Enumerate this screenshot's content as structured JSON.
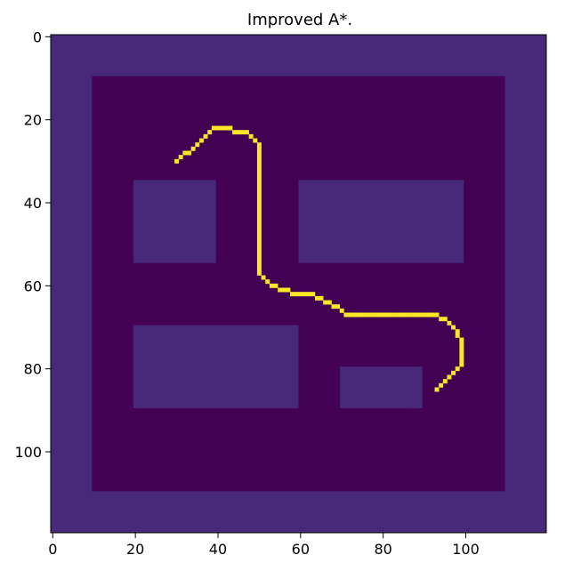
{
  "chart_data": {
    "type": "heatmap",
    "title": "Improved A*.",
    "xlabel": "",
    "ylabel": "",
    "grid": false,
    "xlim": [
      -0.5,
      119.5
    ],
    "ylim": [
      119.5,
      -0.5
    ],
    "x_ticks": [
      0,
      20,
      40,
      60,
      80,
      100
    ],
    "y_ticks": [
      0,
      20,
      40,
      60,
      80,
      100
    ],
    "colors": {
      "free": "#440154",
      "obstacle": "#482878",
      "path": "#fde725",
      "axes": "#000000"
    },
    "grid_size": [
      120,
      120
    ],
    "boundary_obstacle": {
      "outer": [
        0,
        120
      ],
      "inner": [
        10,
        110
      ]
    },
    "obstacles": [
      {
        "x0": 20,
        "x1": 40,
        "y0": 35,
        "y1": 55
      },
      {
        "x0": 60,
        "x1": 100,
        "y0": 35,
        "y1": 55
      },
      {
        "x0": 20,
        "x1": 60,
        "y0": 70,
        "y1": 90
      },
      {
        "x0": 70,
        "x1": 90,
        "y0": 80,
        "y1": 90
      }
    ],
    "path": [
      [
        30,
        30
      ],
      [
        31,
        29
      ],
      [
        32,
        28
      ],
      [
        33,
        28
      ],
      [
        34,
        27
      ],
      [
        35,
        26
      ],
      [
        36,
        25
      ],
      [
        37,
        24
      ],
      [
        38,
        23
      ],
      [
        39,
        22
      ],
      [
        40,
        22
      ],
      [
        41,
        22
      ],
      [
        42,
        22
      ],
      [
        43,
        22
      ],
      [
        44,
        23
      ],
      [
        45,
        23
      ],
      [
        46,
        23
      ],
      [
        47,
        23
      ],
      [
        48,
        24
      ],
      [
        49,
        25
      ],
      [
        50,
        26
      ],
      [
        50,
        27
      ],
      [
        50,
        28
      ],
      [
        50,
        29
      ],
      [
        50,
        30
      ],
      [
        50,
        31
      ],
      [
        50,
        32
      ],
      [
        50,
        33
      ],
      [
        50,
        34
      ],
      [
        50,
        35
      ],
      [
        50,
        36
      ],
      [
        50,
        37
      ],
      [
        50,
        38
      ],
      [
        50,
        39
      ],
      [
        50,
        40
      ],
      [
        50,
        41
      ],
      [
        50,
        42
      ],
      [
        50,
        43
      ],
      [
        50,
        44
      ],
      [
        50,
        45
      ],
      [
        50,
        46
      ],
      [
        50,
        47
      ],
      [
        50,
        48
      ],
      [
        50,
        49
      ],
      [
        50,
        50
      ],
      [
        50,
        51
      ],
      [
        50,
        52
      ],
      [
        50,
        53
      ],
      [
        50,
        54
      ],
      [
        50,
        55
      ],
      [
        50,
        56
      ],
      [
        50,
        57
      ],
      [
        51,
        58
      ],
      [
        52,
        59
      ],
      [
        53,
        60
      ],
      [
        54,
        60
      ],
      [
        55,
        61
      ],
      [
        56,
        61
      ],
      [
        57,
        61
      ],
      [
        58,
        62
      ],
      [
        59,
        62
      ],
      [
        60,
        62
      ],
      [
        61,
        62
      ],
      [
        62,
        62
      ],
      [
        63,
        62
      ],
      [
        64,
        63
      ],
      [
        65,
        63
      ],
      [
        66,
        64
      ],
      [
        67,
        64
      ],
      [
        68,
        65
      ],
      [
        69,
        65
      ],
      [
        70,
        66
      ],
      [
        71,
        67
      ],
      [
        72,
        67
      ],
      [
        73,
        67
      ],
      [
        74,
        67
      ],
      [
        75,
        67
      ],
      [
        76,
        67
      ],
      [
        77,
        67
      ],
      [
        78,
        67
      ],
      [
        79,
        67
      ],
      [
        80,
        67
      ],
      [
        81,
        67
      ],
      [
        82,
        67
      ],
      [
        83,
        67
      ],
      [
        84,
        67
      ],
      [
        85,
        67
      ],
      [
        86,
        67
      ],
      [
        87,
        67
      ],
      [
        88,
        67
      ],
      [
        89,
        67
      ],
      [
        90,
        67
      ],
      [
        91,
        67
      ],
      [
        92,
        67
      ],
      [
        93,
        67
      ],
      [
        94,
        68
      ],
      [
        95,
        68
      ],
      [
        96,
        69
      ],
      [
        97,
        70
      ],
      [
        98,
        71
      ],
      [
        98,
        72
      ],
      [
        99,
        73
      ],
      [
        99,
        74
      ],
      [
        99,
        75
      ],
      [
        99,
        76
      ],
      [
        99,
        77
      ],
      [
        99,
        78
      ],
      [
        99,
        79
      ],
      [
        98,
        80
      ],
      [
        97,
        81
      ],
      [
        96,
        82
      ],
      [
        95,
        83
      ],
      [
        94,
        84
      ],
      [
        93,
        85
      ]
    ]
  }
}
